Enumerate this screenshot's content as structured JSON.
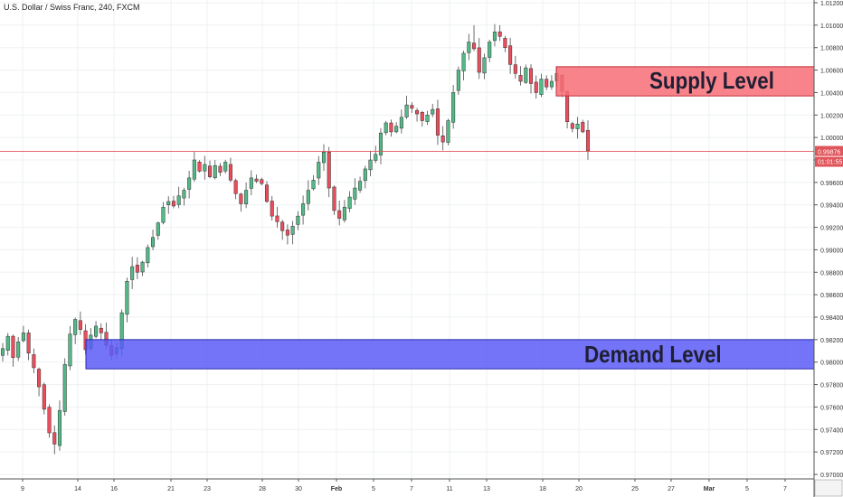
{
  "chart_data": {
    "type": "candlestick",
    "title": "U.S. Dollar / Swiss Franc, 240, FXCM",
    "ylim": [
      0.97,
      1.012
    ],
    "y_ticks": [
      "0.97000",
      "0.97200",
      "0.97400",
      "0.97600",
      "0.97800",
      "0.98000",
      "0.98200",
      "0.98400",
      "0.98600",
      "0.98800",
      "0.99000",
      "0.99200",
      "0.99400",
      "0.99600",
      "0.99800",
      "1.00000",
      "1.00200",
      "1.00400",
      "1.00600",
      "1.00800",
      "1.01000",
      "1.01200"
    ],
    "x_ticks": [
      "9",
      "14",
      "16",
      "21",
      "23",
      "28",
      "30",
      "Feb",
      "5",
      "7",
      "11",
      "13",
      "18",
      "20",
      "25",
      "27",
      "Mar",
      "5",
      "7"
    ],
    "current_price": {
      "value": 0.99876,
      "label": "0.99876",
      "countdown": "01:01:55",
      "color": "#e0545a"
    },
    "zones": [
      {
        "name": "Supply Level",
        "low": 1.0037,
        "high": 1.0063,
        "start_x": "18",
        "fill": "#f76d77",
        "border": "#c0303a"
      },
      {
        "name": "Demand Level",
        "low": 0.9794,
        "high": 0.982,
        "start_x": "14",
        "fill": "#5a5cf6",
        "border": "#2a2ab0"
      }
    ],
    "colors": {
      "up": "#53b987",
      "down": "#eb4d5c"
    },
    "ohlc_close": [
      0.9812,
      0.9823,
      0.9804,
      0.9818,
      0.9826,
      0.9808,
      0.9795,
      0.9778,
      0.9758,
      0.9737,
      0.9727,
      0.9757,
      0.9798,
      0.9825,
      0.9838,
      0.9829,
      0.9811,
      0.9824,
      0.9832,
      0.9826,
      0.9815,
      0.9806,
      0.9813,
      0.9844,
      0.9872,
      0.9885,
      0.988,
      0.9889,
      0.9902,
      0.9911,
      0.9924,
      0.9938,
      0.9943,
      0.9939,
      0.9948,
      0.9953,
      0.9964,
      0.998,
      0.997,
      0.9976,
      0.9965,
      0.9975,
      0.9969,
      0.9978,
      0.9962,
      0.995,
      0.9941,
      0.9953,
      0.9964,
      0.9961,
      0.9959,
      0.9943,
      0.993,
      0.9925,
      0.9917,
      0.9913,
      0.9921,
      0.993,
      0.9941,
      0.9953,
      0.9962,
      0.9978,
      0.9987,
      0.9955,
      0.9935,
      0.9928,
      0.9938,
      0.9947,
      0.9955,
      0.9961,
      0.9972,
      0.998,
      0.9985,
      1.0004,
      1.0013,
      1.0005,
      1.001,
      1.0018,
      1.0029,
      1.0026,
      1.0021,
      1.0015,
      1.002,
      1.0025,
      1.0002,
      0.9996,
      1.0015,
      1.004,
      1.006,
      1.0075,
      1.0085,
      1.0079,
      1.0058,
      1.0071,
      1.0085,
      1.0094,
      1.009,
      1.008,
      1.0065,
      1.0057,
      1.005,
      1.0062,
      1.0048,
      1.004,
      1.0052,
      1.0045,
      1.005,
      1.0057,
      1.0041,
      1.0014,
      1.0008,
      1.0012,
      1.0005,
      0.9988
    ]
  }
}
